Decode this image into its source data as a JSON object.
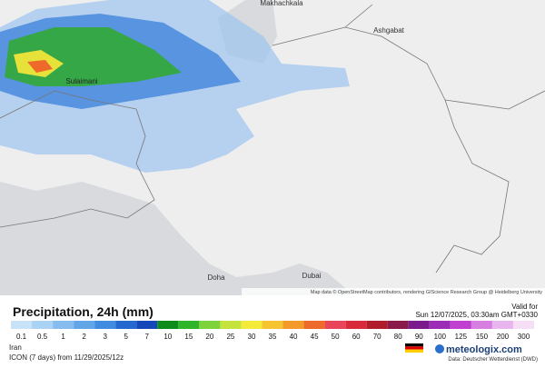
{
  "map": {
    "cities": [
      "Makhachkala",
      "Ashgabat",
      "Sulaimani",
      "Doha",
      "Dubai"
    ],
    "attribution": "Map data © OpenStreetMap contributors, rendering GIScience Research Group @ Heidelberg University"
  },
  "legend": {
    "title": "Precipitation, 24h (mm)",
    "valid_label": "Valid for",
    "valid_time": "Sun 12/07/2025, 03:30am GMT+0330",
    "levels": [
      {
        "value": 0.1,
        "color": "#c8e3f8"
      },
      {
        "value": 0.5,
        "color": "#aad2f4"
      },
      {
        "value": 1,
        "color": "#86bdee"
      },
      {
        "value": 2,
        "color": "#62a6e8"
      },
      {
        "value": 3,
        "color": "#3f8ce0"
      },
      {
        "value": 5,
        "color": "#2468d0"
      },
      {
        "value": 7,
        "color": "#1447b8"
      },
      {
        "value": 10,
        "color": "#0d8c1c"
      },
      {
        "value": 15,
        "color": "#2fb52a"
      },
      {
        "value": 20,
        "color": "#7fd33a"
      },
      {
        "value": 25,
        "color": "#c4e33c"
      },
      {
        "value": 30,
        "color": "#f3ea3a"
      },
      {
        "value": 35,
        "color": "#f6c431"
      },
      {
        "value": 40,
        "color": "#f39a2b"
      },
      {
        "value": 45,
        "color": "#ee6a2a"
      },
      {
        "value": 50,
        "color": "#e8455a"
      },
      {
        "value": 60,
        "color": "#d92a3c"
      },
      {
        "value": 70,
        "color": "#b01c2a"
      },
      {
        "value": 80,
        "color": "#8a1a4a"
      },
      {
        "value": 90,
        "color": "#7a1c8c"
      },
      {
        "value": 100,
        "color": "#9c2bb5"
      },
      {
        "value": 125,
        "color": "#c040d0"
      },
      {
        "value": 150,
        "color": "#d77fe0"
      },
      {
        "value": 200,
        "color": "#e9b5ee"
      },
      {
        "value": 300,
        "color": "#f6def7"
      }
    ]
  },
  "footer": {
    "region": "Iran",
    "model": "ICON (7 days) from 11/29/2025/12z",
    "brand": "meteologix.com",
    "source": "Data: Deutscher Wetterdienst (DWD)"
  }
}
